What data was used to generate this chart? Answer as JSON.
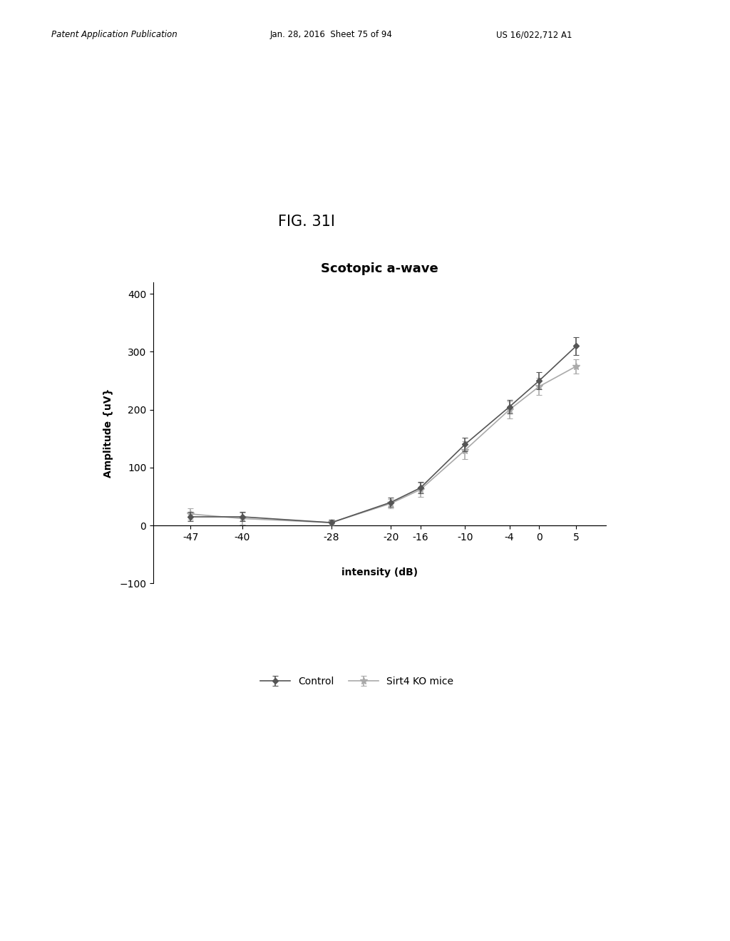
{
  "title": "Scotopic a-wave",
  "xlabel": "intensity (dB)",
  "ylabel": "Amplitude {uV}",
  "x_labels": [
    "-47",
    "-40",
    "-28",
    "-20",
    "-16",
    "-10",
    "-4",
    "0",
    "5"
  ],
  "x_values": [
    -47,
    -40,
    -28,
    -20,
    -16,
    -10,
    -4,
    0,
    5
  ],
  "control_y": [
    15,
    15,
    5,
    40,
    65,
    140,
    205,
    250,
    310
  ],
  "control_err": [
    8,
    8,
    5,
    8,
    10,
    12,
    12,
    15,
    15
  ],
  "sirt4_y": [
    20,
    12,
    5,
    38,
    62,
    130,
    200,
    240,
    275
  ],
  "sirt4_err": [
    10,
    10,
    4,
    8,
    12,
    15,
    15,
    15,
    12
  ],
  "ylim": [
    -100,
    420
  ],
  "yticks": [
    -100,
    0,
    100,
    200,
    300,
    400
  ],
  "control_color": "#555555",
  "sirt4_color": "#aaaaaa",
  "background_color": "#ffffff",
  "title_fontsize": 13,
  "axis_fontsize": 10,
  "legend_fontsize": 10,
  "fig_label": "FIG. 31I",
  "header_left": "Patent Application Publication",
  "header_center": "Jan. 28, 2016  Sheet 75 of 94",
  "header_right": "US 16/022,712 A1"
}
